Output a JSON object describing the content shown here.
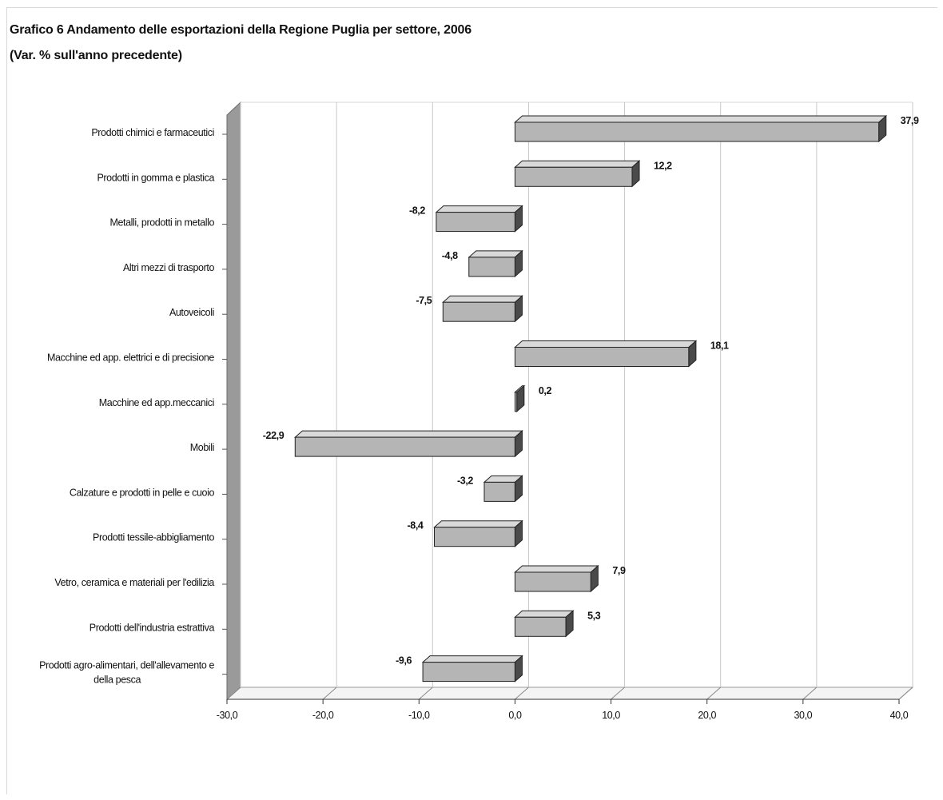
{
  "title": "Grafico 6 Andamento delle esportazioni della Regione Puglia per settore, 2006",
  "subtitle": "(Var. % sull'anno precedente)",
  "chart_data": {
    "type": "bar",
    "orientation": "horizontal",
    "three_d": true,
    "categories": [
      "Prodotti chimici e farmaceutici",
      "Prodotti in gomma e plastica",
      "Metalli,  prodotti in metallo",
      "Altri mezzi di trasporto",
      "Autoveicoli",
      "Macchine ed app. elettrici e di precisione",
      "Macchine ed app.meccanici",
      "Mobili",
      "Calzature e prodotti in pelle e cuoio",
      "Prodotti tessile-abbigliamento",
      "Vetro, ceramica e materiali per l'edilizia",
      "Prodotti dell'industria estrattiva",
      "Prodotti agro-alimentari, dell'allevamento e della pesca"
    ],
    "values": [
      37.9,
      12.2,
      -8.2,
      -4.8,
      -7.5,
      18.1,
      0.2,
      -22.9,
      -3.2,
      -8.4,
      7.9,
      5.3,
      -9.6
    ],
    "value_labels": [
      "37,9",
      "12,2",
      "-8,2",
      "-4,8",
      "-7,5",
      "18,1",
      "0,2",
      "-22,9",
      "-3,2",
      "-8,4",
      "7,9",
      "5,3",
      "-9,6"
    ],
    "xlim": [
      -30,
      40
    ],
    "xticks": [
      -30,
      -20,
      -10,
      0,
      10,
      20,
      30,
      40
    ],
    "xtick_labels": [
      "-30,0",
      "-20,0",
      "-10,0",
      "0,0",
      "10,0",
      "20,0",
      "30,0",
      "40,0"
    ],
    "xlabel": "",
    "ylabel": "",
    "grid": true,
    "legend": "none",
    "colors": {
      "bar_face": "#b5b5b5",
      "bar_side": "#4a4a4a",
      "bar_top": "#d9d9d9",
      "wall": "#9a9a9a",
      "grid": "#c8c8c8"
    }
  }
}
